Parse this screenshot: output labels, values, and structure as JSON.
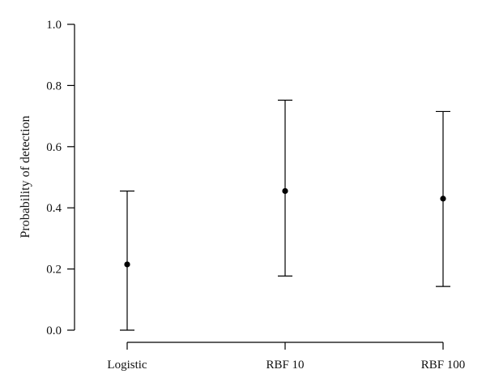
{
  "chart_data": {
    "type": "scatter",
    "title": "",
    "xlabel": "",
    "ylabel": "Probability of detection",
    "ylim": [
      0.0,
      1.0
    ],
    "yticks": [
      "0.0",
      "0.2",
      "0.4",
      "0.6",
      "0.8",
      "1.0"
    ],
    "categories": [
      "Logistic",
      "RBF 10",
      "RBF 100"
    ],
    "series": [
      {
        "values": [
          0.215,
          0.455,
          0.43
        ],
        "lower": [
          0.0,
          0.177,
          0.143
        ],
        "upper": [
          0.455,
          0.752,
          0.715
        ]
      }
    ],
    "error_bars": true,
    "grid": false,
    "legend": "none"
  }
}
